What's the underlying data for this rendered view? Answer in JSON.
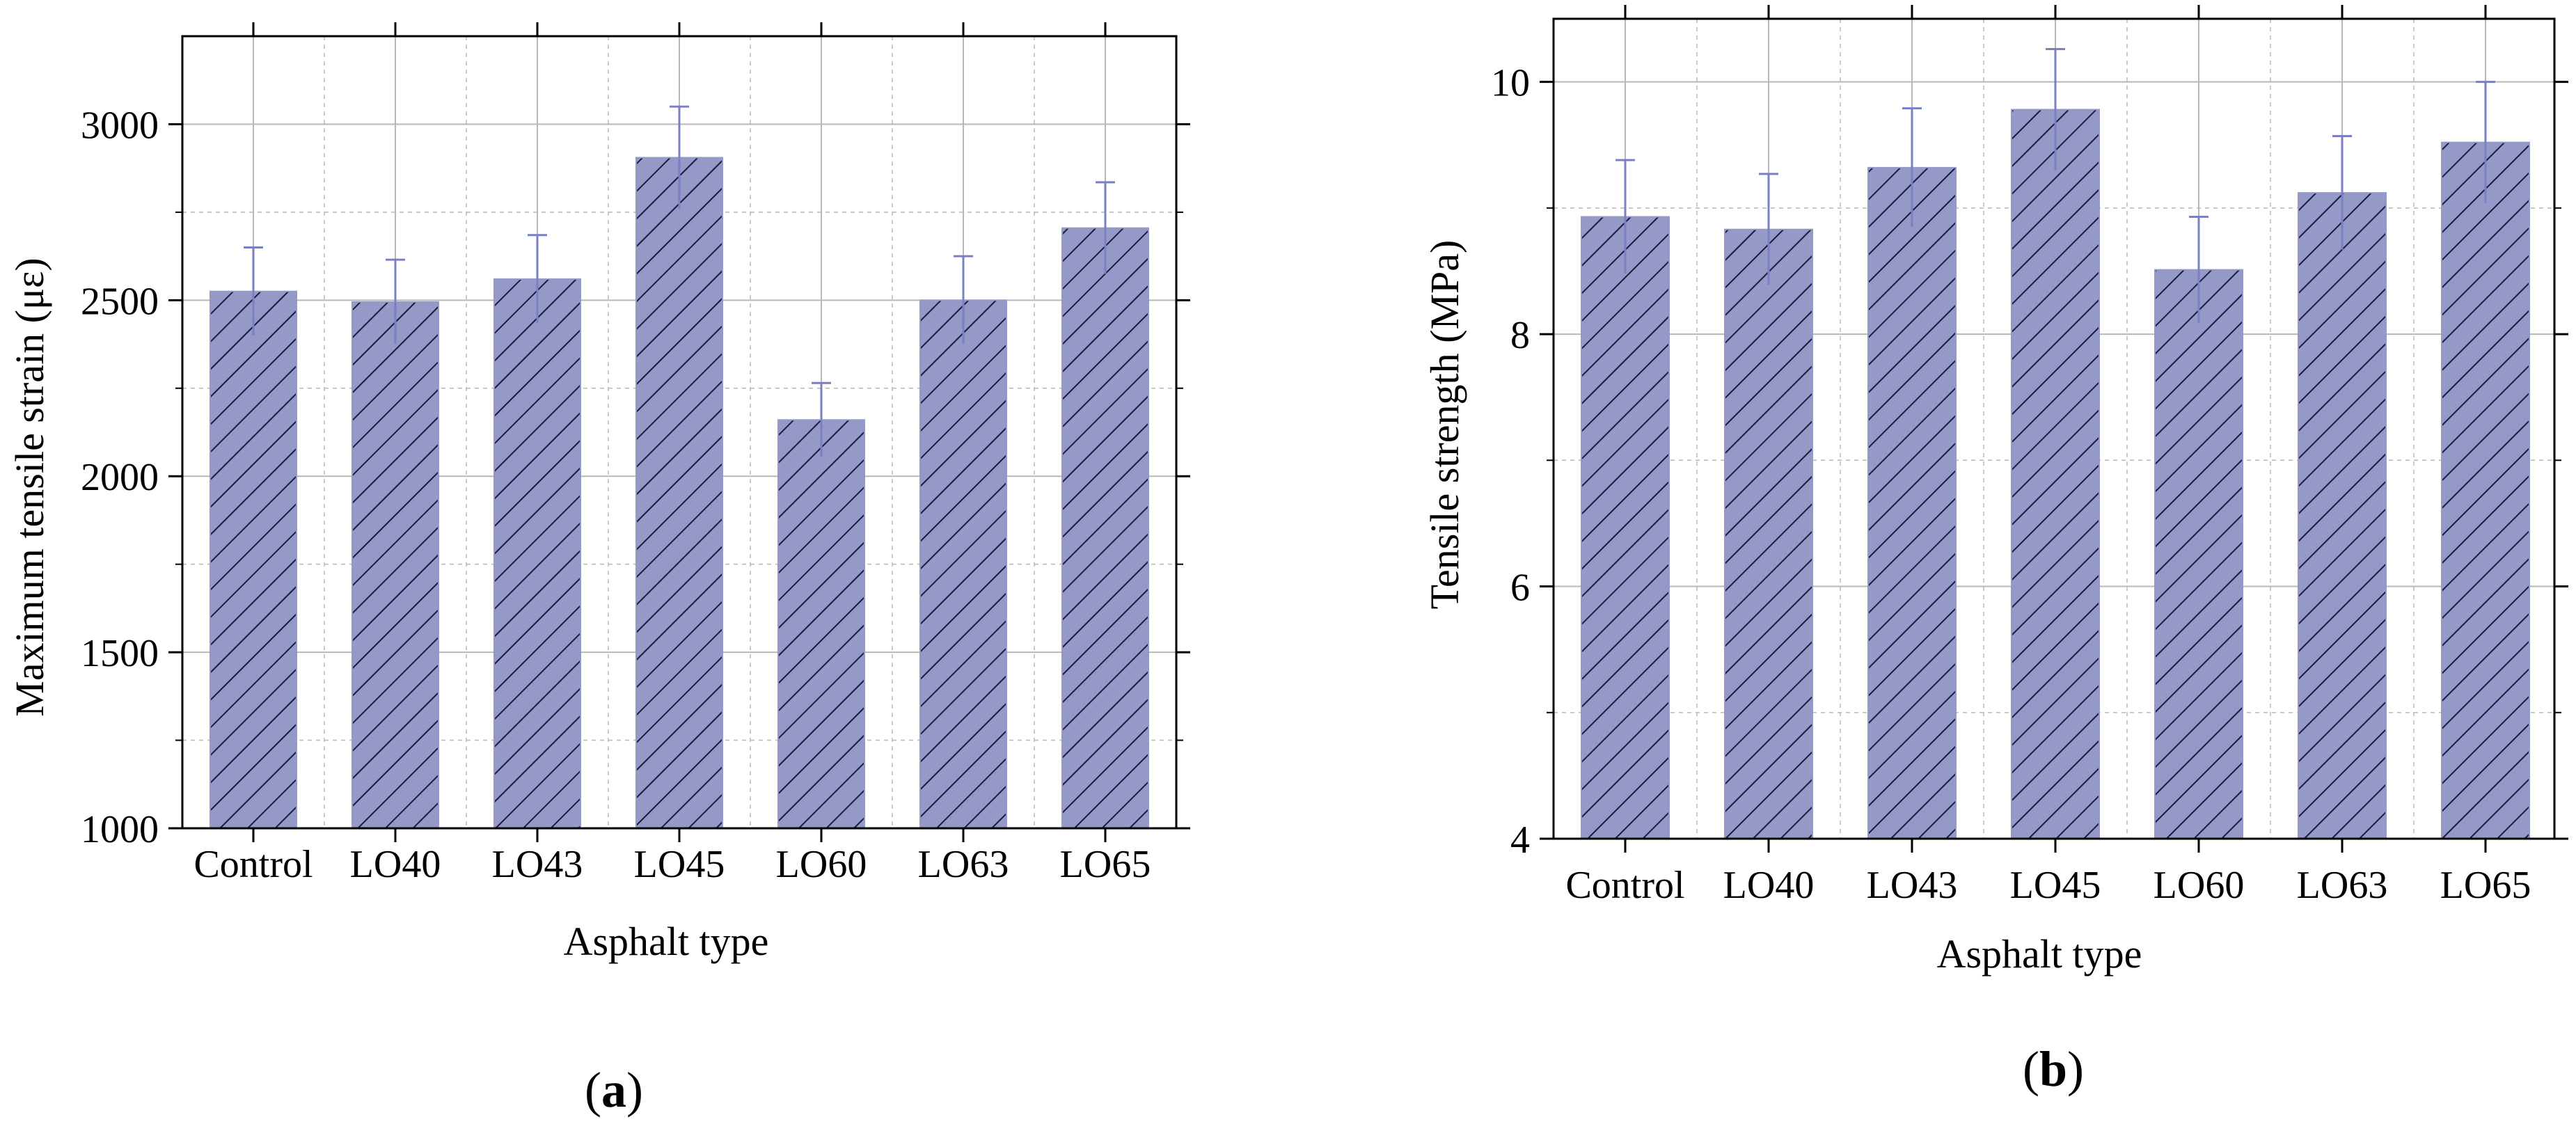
{
  "chart_data": [
    {
      "type": "bar",
      "panel_label": "a",
      "title": "",
      "xlabel": "Asphalt type",
      "ylabel": "Maximum tensile strain (με)",
      "categories": [
        "Control",
        "LO40",
        "LO43",
        "LO45",
        "LO60",
        "LO63",
        "LO65"
      ],
      "values": [
        2525,
        2495,
        2560,
        2905,
        2160,
        2500,
        2705
      ],
      "errors": [
        125,
        120,
        125,
        145,
        105,
        125,
        130
      ],
      "ylim": [
        1000,
        3250
      ],
      "yticks": [
        1000,
        1500,
        2000,
        2500,
        3000
      ],
      "grid": true,
      "bar_color": "#9499c8",
      "hatch_color": "#1a1a3a",
      "error_color": "#7a80c4",
      "grid_color": "#b8b8b8"
    },
    {
      "type": "bar",
      "panel_label": "b",
      "title": "",
      "xlabel": "Asphalt type",
      "ylabel": "Tensile strength (MPa)",
      "categories": [
        "Control",
        "LO40",
        "LO43",
        "LO45",
        "LO60",
        "LO63",
        "LO65"
      ],
      "values": [
        8.93,
        8.83,
        9.32,
        9.78,
        8.51,
        9.12,
        9.52
      ],
      "errors": [
        0.45,
        0.44,
        0.47,
        0.48,
        0.42,
        0.45,
        0.48
      ],
      "ylim": [
        4,
        10.5
      ],
      "yticks": [
        4,
        6,
        8,
        10
      ],
      "grid": true,
      "bar_color": "#9499c8",
      "hatch_color": "#1a1a3a",
      "error_color": "#7a80c4",
      "grid_color": "#b8b8b8"
    }
  ]
}
